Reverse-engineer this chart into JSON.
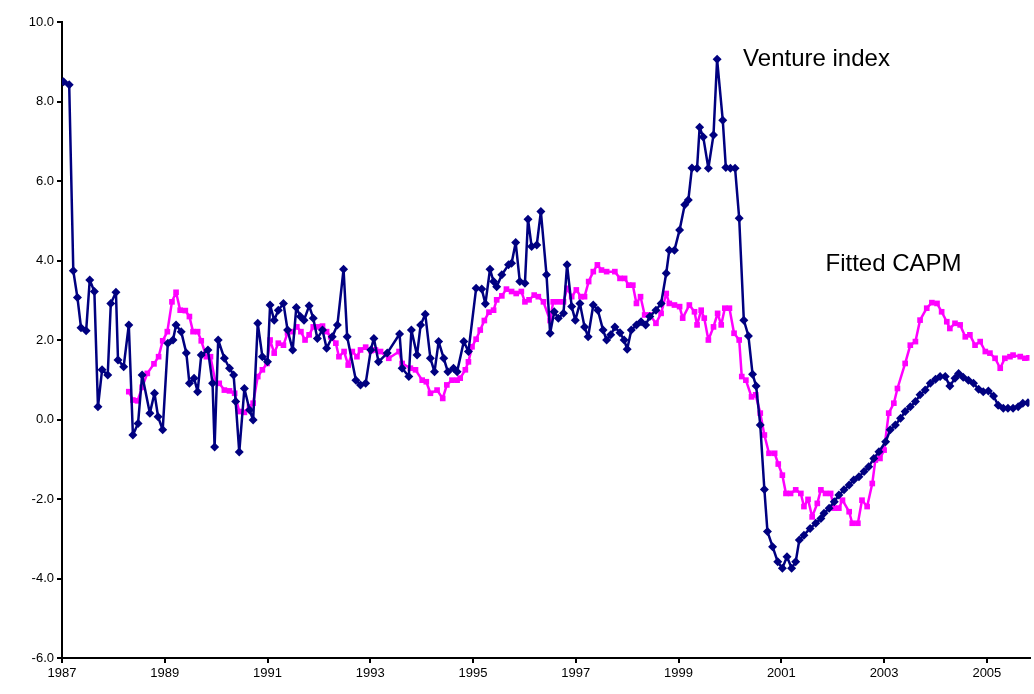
{
  "chart_data": {
    "type": "line",
    "xlim": [
      1987,
      2005.83
    ],
    "xticks": [
      1987,
      1989,
      1991,
      1993,
      1995,
      1997,
      1999,
      2001,
      2003,
      2005
    ],
    "ylim": [
      -6,
      10
    ],
    "yticks": [
      {
        "value": -6,
        "label": "-6.0"
      },
      {
        "value": -4,
        "label": "-4.0"
      },
      {
        "value": -2,
        "label": "-2.0"
      },
      {
        "value": 0,
        "label": "0.0"
      },
      {
        "value": 2,
        "label": "2.0"
      },
      {
        "value": 4,
        "label": "4.0"
      },
      {
        "value": 6,
        "label": "6.0"
      },
      {
        "value": 8,
        "label": "8.0"
      },
      {
        "value": 10,
        "label": "10.0"
      }
    ],
    "grid": false,
    "legend": false,
    "line_style": "solid",
    "series": [
      {
        "name": "Venture index",
        "color": "#000080",
        "marker": "diamond",
        "x": [
          1987.03,
          1987.14,
          1987.22,
          1987.3,
          1987.37,
          1987.47,
          1987.54,
          1987.63,
          1987.7,
          1987.78,
          1987.89,
          1987.95,
          1988.05,
          1988.09,
          1988.2,
          1988.3,
          1988.38,
          1988.48,
          1988.56,
          1988.71,
          1988.8,
          1988.87,
          1988.96,
          1989.06,
          1989.16,
          1989.22,
          1989.32,
          1989.42,
          1989.48,
          1989.57,
          1989.64,
          1989.71,
          1989.84,
          1989.93,
          1989.97,
          1990.04,
          1990.16,
          1990.26,
          1990.34,
          1990.38,
          1990.45,
          1990.55,
          1990.65,
          1990.72,
          1990.81,
          1990.9,
          1991.0,
          1991.05,
          1991.13,
          1991.21,
          1991.31,
          1991.39,
          1991.49,
          1991.56,
          1991.64,
          1991.71,
          1991.81,
          1991.89,
          1991.97,
          1992.07,
          1992.15,
          1992.26,
          1992.36,
          1992.48,
          1992.55,
          1992.72,
          1992.81,
          1992.91,
          1993.01,
          1993.07,
          1993.16,
          1993.33,
          1993.57,
          1993.62,
          1993.75,
          1993.8,
          1993.91,
          1993.98,
          1994.07,
          1994.17,
          1994.25,
          1994.33,
          1994.43,
          1994.51,
          1994.62,
          1994.69,
          1994.82,
          1994.91,
          1995.06,
          1995.17,
          1995.24,
          1995.33,
          1995.4,
          1995.46,
          1995.56,
          1995.69,
          1995.75,
          1995.83,
          1995.91,
          1996.01,
          1996.07,
          1996.14,
          1996.24,
          1996.32,
          1996.43,
          1996.5,
          1996.58,
          1996.66,
          1996.76,
          1996.83,
          1996.92,
          1996.99,
          1997.08,
          1997.17,
          1997.24,
          1997.34,
          1997.43,
          1997.53,
          1997.6,
          1997.68,
          1997.76,
          1997.86,
          1997.94,
          1998.0,
          1998.08,
          1998.18,
          1998.27,
          1998.36,
          1998.44,
          1998.56,
          1998.66,
          1998.76,
          1998.82,
          1998.92,
          1999.02,
          1999.12,
          1999.19,
          1999.26,
          1999.36,
          1999.41,
          1999.48,
          1999.58,
          1999.68,
          1999.75,
          1999.86,
          1999.92,
          2000.01,
          2000.1,
          2000.18,
          2000.27,
          2000.36,
          2000.44,
          2000.51,
          2000.59,
          2000.67,
          2000.73,
          2000.83,
          2000.93,
          2001.02,
          2001.11,
          2001.2,
          2001.28,
          2001.35,
          2001.44,
          2001.56,
          2001.67,
          2001.77,
          2001.83,
          2001.93,
          2002.03,
          2002.12,
          2002.22,
          2002.32,
          2002.41,
          2002.51,
          2002.61,
          2002.7,
          2002.8,
          2002.9,
          2003.03,
          2003.12,
          2003.22,
          2003.32,
          2003.41,
          2003.51,
          2003.61,
          2003.7,
          2003.8,
          2003.9,
          2004.0,
          2004.09,
          2004.19,
          2004.28,
          2004.38,
          2004.45,
          2004.54,
          2004.64,
          2004.74,
          2004.84,
          2004.93,
          2005.03,
          2005.13,
          2005.22,
          2005.32,
          2005.41,
          2005.51,
          2005.61,
          2005.7,
          2005.8
        ],
        "values": [
          8.5,
          8.42,
          3.74,
          3.07,
          2.31,
          2.23,
          3.51,
          3.22,
          0.32,
          1.25,
          1.12,
          2.92,
          3.2,
          1.5,
          1.33,
          2.38,
          -0.39,
          -0.1,
          1.12,
          0.16,
          0.66,
          0.07,
          -0.26,
          1.92,
          2.0,
          2.38,
          2.21,
          1.67,
          0.91,
          1.04,
          0.7,
          1.62,
          1.75,
          0.91,
          -0.69,
          2.0,
          1.54,
          1.29,
          1.12,
          0.45,
          -0.82,
          0.78,
          0.24,
          -0.01,
          2.42,
          1.58,
          1.45,
          2.88,
          2.5,
          2.75,
          2.92,
          2.25,
          1.75,
          2.82,
          2.59,
          2.5,
          2.86,
          2.55,
          2.04,
          2.25,
          1.79,
          2.08,
          2.38,
          3.78,
          2.08,
          0.99,
          0.87,
          0.91,
          1.75,
          2.04,
          1.45,
          1.67,
          2.15,
          1.29,
          1.08,
          2.25,
          1.62,
          2.38,
          2.65,
          1.54,
          1.2,
          1.96,
          1.54,
          1.2,
          1.29,
          1.2,
          1.96,
          1.71,
          3.3,
          3.28,
          2.91,
          3.78,
          3.47,
          3.34,
          3.64,
          3.89,
          3.93,
          4.45,
          3.47,
          3.43,
          5.04,
          4.35,
          4.39,
          5.23,
          3.64,
          2.17,
          2.71,
          2.55,
          2.67,
          3.89,
          2.84,
          2.5,
          2.92,
          2.33,
          2.08,
          2.88,
          2.75,
          2.25,
          2.0,
          2.13,
          2.33,
          2.18,
          2.0,
          1.77,
          2.25,
          2.38,
          2.46,
          2.38,
          2.59,
          2.75,
          2.92,
          3.68,
          4.26,
          4.26,
          4.77,
          5.4,
          5.52,
          6.33,
          6.32,
          7.35,
          7.11,
          6.32,
          7.16,
          9.06,
          7.53,
          6.34,
          6.32,
          6.32,
          5.06,
          2.5,
          2.1,
          1.14,
          0.84,
          -0.14,
          -1.76,
          -2.82,
          -3.2,
          -3.58,
          -3.74,
          -3.45,
          -3.74,
          -3.58,
          -3.03,
          -2.91,
          -2.74,
          -2.61,
          -2.49,
          -2.36,
          -2.23,
          -2.07,
          -1.9,
          -1.77,
          -1.65,
          -1.52,
          -1.44,
          -1.31,
          -1.19,
          -0.98,
          -0.81,
          -0.56,
          -0.26,
          -0.14,
          0.03,
          0.2,
          0.32,
          0.45,
          0.62,
          0.74,
          0.91,
          1.01,
          1.08,
          1.08,
          0.84,
          1.04,
          1.16,
          1.06,
          0.99,
          0.91,
          0.76,
          0.7,
          0.72,
          0.59,
          0.36,
          0.28,
          0.28,
          0.28,
          0.32,
          0.41,
          0.42
        ]
      },
      {
        "name": "Fitted CAPM",
        "color": "#ff00ff",
        "marker": "square",
        "x": [
          1988.3,
          1988.38,
          1988.47,
          1988.56,
          1988.66,
          1988.79,
          1988.88,
          1988.96,
          1989.05,
          1989.14,
          1989.22,
          1989.3,
          1989.4,
          1989.48,
          1989.55,
          1989.64,
          1989.71,
          1989.81,
          1989.89,
          1989.98,
          1990.06,
          1990.16,
          1990.26,
          1990.36,
          1990.45,
          1990.55,
          1990.65,
          1990.72,
          1990.81,
          1990.9,
          1990.99,
          1991.05,
          1991.13,
          1991.21,
          1991.31,
          1991.39,
          1991.49,
          1991.57,
          1991.65,
          1991.73,
          1991.81,
          1991.89,
          1991.97,
          1992.07,
          1992.15,
          1992.23,
          1992.33,
          1992.39,
          1992.49,
          1992.57,
          1992.65,
          1992.74,
          1992.81,
          1992.91,
          1993.01,
          1993.1,
          1993.2,
          1993.36,
          1993.56,
          1993.62,
          1993.78,
          1993.88,
          1994.01,
          1994.09,
          1994.17,
          1994.3,
          1994.41,
          1994.49,
          1994.59,
          1994.69,
          1994.75,
          1994.85,
          1994.91,
          1994.98,
          1995.06,
          1995.14,
          1995.22,
          1995.31,
          1995.4,
          1995.46,
          1995.56,
          1995.65,
          1995.75,
          1995.84,
          1995.94,
          1996.01,
          1996.09,
          1996.19,
          1996.27,
          1996.37,
          1996.5,
          1996.56,
          1996.66,
          1996.76,
          1996.83,
          1996.92,
          1997.01,
          1997.1,
          1997.17,
          1997.25,
          1997.34,
          1997.42,
          1997.5,
          1997.6,
          1997.76,
          1997.86,
          1997.95,
          1998.03,
          1998.11,
          1998.18,
          1998.26,
          1998.34,
          1998.44,
          1998.56,
          1998.66,
          1998.76,
          1998.82,
          1998.92,
          1999.02,
          1999.08,
          1999.21,
          1999.31,
          1999.36,
          1999.44,
          1999.5,
          1999.58,
          1999.68,
          1999.76,
          1999.83,
          1999.9,
          1999.99,
          2000.08,
          2000.18,
          2000.23,
          2000.31,
          2000.42,
          2000.5,
          2000.59,
          2000.67,
          2000.76,
          2000.87,
          2000.94,
          2001.02,
          2001.09,
          2001.18,
          2001.28,
          2001.38,
          2001.44,
          2001.52,
          2001.6,
          2001.7,
          2001.77,
          2001.86,
          2001.96,
          2002.03,
          2002.12,
          2002.19,
          2002.32,
          2002.38,
          2002.49,
          2002.57,
          2002.67,
          2002.77,
          2002.83,
          2002.92,
          2003.0,
          2003.09,
          2003.19,
          2003.26,
          2003.41,
          2003.51,
          2003.61,
          2003.7,
          2003.83,
          2003.93,
          2004.03,
          2004.12,
          2004.22,
          2004.28,
          2004.38,
          2004.48,
          2004.58,
          2004.67,
          2004.77,
          2004.87,
          2004.97,
          2005.06,
          2005.16,
          2005.26,
          2005.35,
          2005.45,
          2005.51,
          2005.65,
          2005.74,
          2005.82
        ],
        "values": [
          0.7,
          0.49,
          0.47,
          0.81,
          1.16,
          1.4,
          1.58,
          1.98,
          2.21,
          2.96,
          3.2,
          2.75,
          2.74,
          2.59,
          2.21,
          2.21,
          1.98,
          1.58,
          1.58,
          0.98,
          0.91,
          0.74,
          0.72,
          0.66,
          0.2,
          0.18,
          0.32,
          0.41,
          1.08,
          1.25,
          1.41,
          2.0,
          1.67,
          1.92,
          1.87,
          2.18,
          2.21,
          2.33,
          2.21,
          2.0,
          2.13,
          2.33,
          2.33,
          2.35,
          2.21,
          2.08,
          1.92,
          1.58,
          1.71,
          1.37,
          1.71,
          1.58,
          1.75,
          1.82,
          1.73,
          1.75,
          1.71,
          1.54,
          1.71,
          1.41,
          1.29,
          1.25,
          0.99,
          0.95,
          0.66,
          0.74,
          0.53,
          0.87,
          0.99,
          0.99,
          1.04,
          1.25,
          1.45,
          1.83,
          2.02,
          2.25,
          2.49,
          2.7,
          2.75,
          3.01,
          3.11,
          3.28,
          3.22,
          3.17,
          3.22,
          2.96,
          3.01,
          3.13,
          3.09,
          2.96,
          2.49,
          2.96,
          2.96,
          2.96,
          3.3,
          3.09,
          3.26,
          3.09,
          3.09,
          3.47,
          3.72,
          3.89,
          3.76,
          3.72,
          3.72,
          3.55,
          3.55,
          3.38,
          3.38,
          2.92,
          3.09,
          2.63,
          2.63,
          2.42,
          2.67,
          3.17,
          2.92,
          2.88,
          2.84,
          2.55,
          2.88,
          2.71,
          2.38,
          2.75,
          2.55,
          2.0,
          2.33,
          2.67,
          2.38,
          2.8,
          2.8,
          2.17,
          2.0,
          1.08,
          0.99,
          0.57,
          0.62,
          0.16,
          -0.39,
          -0.85,
          -0.85,
          -1.12,
          -1.4,
          -1.86,
          -1.86,
          -1.77,
          -1.86,
          -2.19,
          -2.01,
          -2.45,
          -2.11,
          -1.77,
          -1.86,
          -1.86,
          -2.23,
          -2.23,
          -2.03,
          -2.32,
          -2.61,
          -2.61,
          -2.03,
          -2.19,
          -1.61,
          -1.02,
          -0.98,
          -0.77,
          0.16,
          0.41,
          0.78,
          1.41,
          1.87,
          1.96,
          2.5,
          2.8,
          2.94,
          2.92,
          2.71,
          2.46,
          2.29,
          2.42,
          2.38,
          2.08,
          2.13,
          1.87,
          1.96,
          1.71,
          1.67,
          1.54,
          1.29,
          1.54,
          1.58,
          1.62,
          1.58,
          1.54,
          1.55
        ]
      }
    ]
  }
}
